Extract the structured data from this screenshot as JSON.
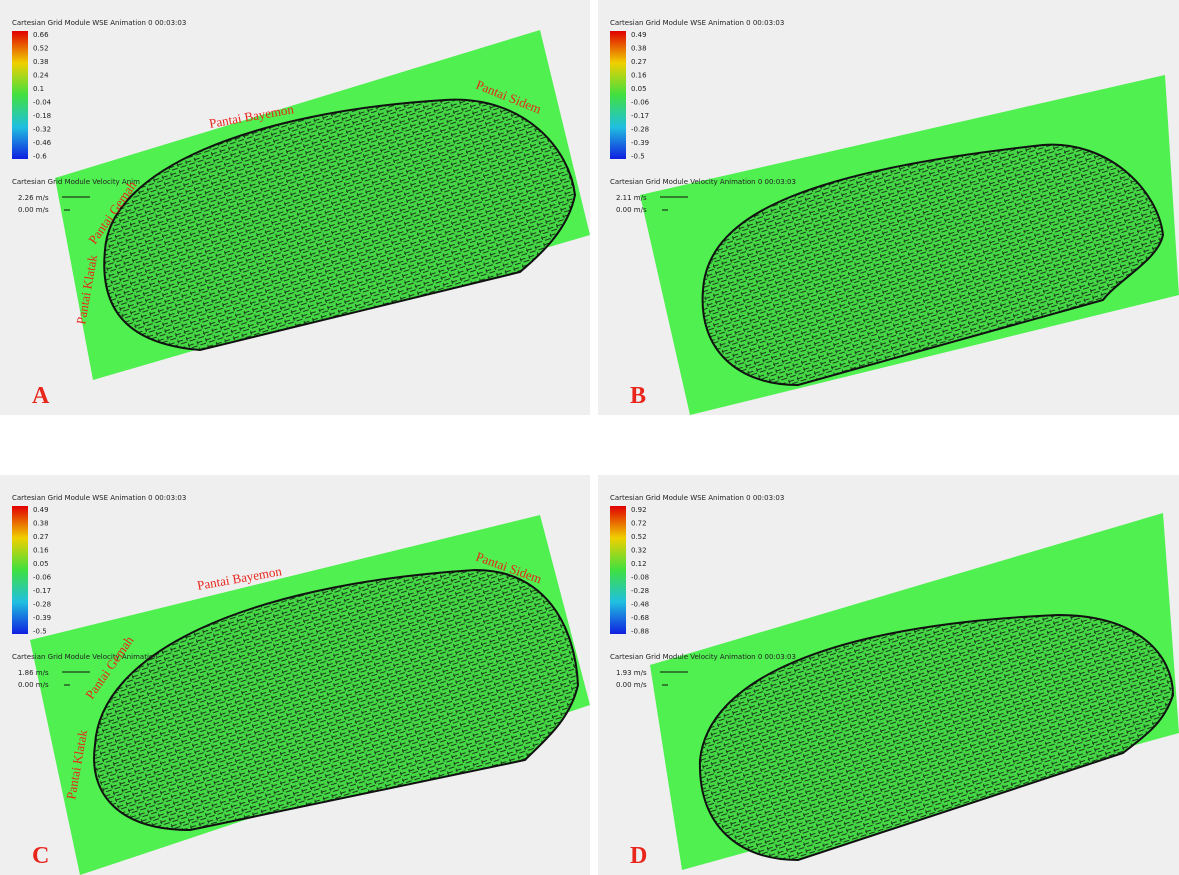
{
  "panels": [
    {
      "label": "A",
      "wse_title": "Cartesian Grid Module WSE Animation 0 00:03:03",
      "colorbar_ticks": [
        "0.66",
        "0.52",
        "0.38",
        "0.24",
        "0.1",
        "-0.04",
        "-0.18",
        "-0.32",
        "-0.46",
        "-0.6"
      ],
      "velocity_title": "Cartesian Grid Module Velocity Anim",
      "velocity_max": "2.26 m/s",
      "velocity_min": "0.00 m/s",
      "place_labels": [
        "Pantai Bayemon",
        "Pantai Sidem",
        "Pantai Gemah",
        "Pantai Klatak"
      ]
    },
    {
      "label": "B",
      "wse_title": "Cartesian Grid Module WSE Animation 0 00:03:03",
      "colorbar_ticks": [
        "0.49",
        "0.38",
        "0.27",
        "0.16",
        "0.05",
        "-0.06",
        "-0.17",
        "-0.28",
        "-0.39",
        "-0.5"
      ],
      "velocity_title": "Cartesian Grid Module Velocity Animation 0 00:03:03",
      "velocity_max": "2.11 m/s",
      "velocity_min": "0.00 m/s",
      "place_labels": []
    },
    {
      "label": "C",
      "wse_title": "Cartesian Grid Module WSE Animation 0 00:03:03",
      "colorbar_ticks": [
        "0.49",
        "0.38",
        "0.27",
        "0.16",
        "0.05",
        "-0.06",
        "-0.17",
        "-0.28",
        "-0.39",
        "-0.5"
      ],
      "velocity_title": "Cartesian Grid Module Velocity Animation",
      "velocity_max": "1.86 m/s",
      "velocity_min": "0.00 m/s",
      "place_labels": [
        "Pantai Bayemon",
        "Pantai Sidem",
        "Pantai Gemah",
        "Pantai Klatak"
      ]
    },
    {
      "label": "D",
      "wse_title": "Cartesian Grid Module WSE Animation 0 00:03:03",
      "colorbar_ticks": [
        "0.92",
        "0.72",
        "0.52",
        "0.32",
        "0.12",
        "-0.08",
        "-0.28",
        "-0.48",
        "-0.68",
        "-0.88"
      ],
      "velocity_title": "Cartesian Grid Module Velocity Animation 0 00:03:03",
      "velocity_max": "1.93 m/s",
      "velocity_min": "0.00 m/s",
      "place_labels": []
    }
  ]
}
